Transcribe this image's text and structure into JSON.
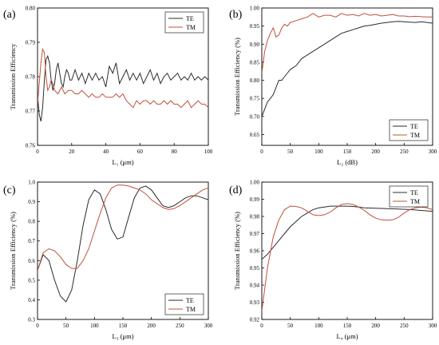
{
  "colors": {
    "TE": "#2b2b2b",
    "TM": "#c0503c"
  },
  "chart_data": [
    {
      "type": "line",
      "panel": "(a)",
      "xlabel": "L₁ (μm)",
      "ylabel": "Transmission Efficiency",
      "xlim": [
        0,
        100
      ],
      "ylim": [
        0.76,
        0.8
      ],
      "xticks": [
        "0",
        "20",
        "40",
        "60",
        "80",
        "100"
      ],
      "yticks": [
        "0.76",
        "0.77",
        "0.78",
        "0.79",
        "0.80"
      ],
      "legend": "top-right",
      "series": [
        {
          "name": "TE",
          "x": [
            0,
            1,
            2,
            3,
            4,
            5,
            6,
            7,
            8,
            9,
            10,
            11,
            12,
            13,
            14,
            15,
            16,
            17,
            18,
            19,
            20,
            22,
            24,
            26,
            28,
            30,
            32,
            34,
            36,
            38,
            40,
            42,
            44,
            46,
            48,
            50,
            52,
            54,
            56,
            58,
            60,
            62,
            64,
            66,
            68,
            70,
            72,
            74,
            76,
            78,
            80,
            82,
            84,
            86,
            88,
            90,
            92,
            94,
            96,
            98,
            100
          ],
          "y": [
            0.775,
            0.769,
            0.767,
            0.771,
            0.779,
            0.785,
            0.786,
            0.784,
            0.779,
            0.776,
            0.778,
            0.782,
            0.784,
            0.781,
            0.778,
            0.777,
            0.78,
            0.782,
            0.781,
            0.779,
            0.779,
            0.782,
            0.779,
            0.781,
            0.778,
            0.781,
            0.779,
            0.781,
            0.779,
            0.78,
            0.777,
            0.783,
            0.781,
            0.784,
            0.778,
            0.78,
            0.782,
            0.779,
            0.781,
            0.779,
            0.781,
            0.778,
            0.78,
            0.782,
            0.779,
            0.781,
            0.778,
            0.78,
            0.781,
            0.779,
            0.78,
            0.781,
            0.779,
            0.78,
            0.779,
            0.781,
            0.779,
            0.78,
            0.779,
            0.78,
            0.779
          ]
        },
        {
          "name": "TM",
          "x": [
            0,
            1,
            2,
            3,
            4,
            5,
            6,
            7,
            8,
            9,
            10,
            12,
            14,
            16,
            18,
            20,
            22,
            24,
            26,
            28,
            30,
            32,
            34,
            36,
            38,
            40,
            42,
            44,
            46,
            48,
            50,
            52,
            54,
            56,
            58,
            60,
            62,
            64,
            66,
            68,
            70,
            72,
            74,
            76,
            78,
            80,
            82,
            84,
            86,
            88,
            90,
            92,
            94,
            96,
            98,
            100
          ],
          "y": [
            0.772,
            0.778,
            0.784,
            0.788,
            0.787,
            0.78,
            0.776,
            0.777,
            0.779,
            0.778,
            0.776,
            0.775,
            0.777,
            0.775,
            0.776,
            0.776,
            0.775,
            0.775,
            0.776,
            0.775,
            0.774,
            0.775,
            0.774,
            0.774,
            0.775,
            0.774,
            0.774,
            0.774,
            0.775,
            0.774,
            0.775,
            0.773,
            0.772,
            0.771,
            0.773,
            0.772,
            0.773,
            0.773,
            0.772,
            0.773,
            0.772,
            0.772,
            0.773,
            0.772,
            0.773,
            0.772,
            0.772,
            0.771,
            0.772,
            0.773,
            0.771,
            0.772,
            0.773,
            0.772,
            0.772,
            0.771
          ]
        }
      ]
    },
    {
      "type": "line",
      "panel": "(b)",
      "xlabel": "L₂ (dB)",
      "ylabel": "Transmission Efficiency (%)",
      "xlim": [
        0,
        300
      ],
      "ylim": [
        0.62,
        1.0
      ],
      "xticks": [
        "0",
        "50",
        "100",
        "150",
        "200",
        "250",
        "300"
      ],
      "yticks": [
        "0.65",
        "0.70",
        "0.75",
        "0.80",
        "0.85",
        "0.90",
        "0.95",
        "1.00"
      ],
      "legend": "bottom-right",
      "series": [
        {
          "name": "TE",
          "x": [
            0,
            5,
            10,
            15,
            20,
            25,
            30,
            35,
            40,
            45,
            50,
            60,
            70,
            80,
            90,
            100,
            110,
            120,
            130,
            140,
            150,
            160,
            170,
            180,
            190,
            200,
            210,
            220,
            230,
            240,
            250,
            260,
            270,
            280,
            290,
            300
          ],
          "y": [
            0.7,
            0.72,
            0.74,
            0.75,
            0.76,
            0.78,
            0.8,
            0.8,
            0.81,
            0.82,
            0.83,
            0.84,
            0.86,
            0.87,
            0.88,
            0.89,
            0.9,
            0.91,
            0.92,
            0.93,
            0.935,
            0.94,
            0.945,
            0.95,
            0.952,
            0.955,
            0.958,
            0.96,
            0.962,
            0.963,
            0.962,
            0.961,
            0.96,
            0.962,
            0.96,
            0.958
          ]
        },
        {
          "name": "TM",
          "x": [
            0,
            5,
            10,
            15,
            20,
            25,
            30,
            35,
            40,
            45,
            50,
            60,
            70,
            80,
            90,
            100,
            110,
            120,
            130,
            140,
            150,
            160,
            170,
            180,
            190,
            200,
            210,
            220,
            230,
            240,
            250,
            260,
            270,
            280,
            290,
            300
          ],
          "y": [
            0.82,
            0.88,
            0.91,
            0.93,
            0.945,
            0.92,
            0.925,
            0.945,
            0.955,
            0.95,
            0.96,
            0.965,
            0.97,
            0.975,
            0.985,
            0.975,
            0.98,
            0.98,
            0.975,
            0.985,
            0.98,
            0.982,
            0.978,
            0.985,
            0.98,
            0.982,
            0.978,
            0.98,
            0.982,
            0.978,
            0.978,
            0.976,
            0.977,
            0.976,
            0.975,
            0.975
          ]
        }
      ]
    },
    {
      "type": "line",
      "panel": "(c)",
      "xlabel": "L₃ (μm)",
      "ylabel": "Transmission Efficiency (%)",
      "xlim": [
        0,
        300
      ],
      "ylim": [
        0.3,
        1.0
      ],
      "xticks": [
        "0",
        "50",
        "100",
        "150",
        "200",
        "250",
        "300"
      ],
      "yticks": [
        "0.3",
        "0.4",
        "0.5",
        "0.6",
        "0.7",
        "0.8",
        "0.9",
        "1.0"
      ],
      "legend": "bottom-right",
      "series": [
        {
          "name": "TE",
          "x": [
            0,
            10,
            20,
            30,
            40,
            50,
            60,
            70,
            80,
            90,
            100,
            110,
            120,
            130,
            140,
            150,
            160,
            170,
            180,
            190,
            200,
            210,
            220,
            230,
            240,
            250,
            260,
            270,
            280,
            290,
            300
          ],
          "y": [
            0.55,
            0.63,
            0.6,
            0.5,
            0.42,
            0.39,
            0.45,
            0.6,
            0.78,
            0.91,
            0.96,
            0.94,
            0.86,
            0.76,
            0.71,
            0.72,
            0.82,
            0.92,
            0.97,
            0.98,
            0.96,
            0.92,
            0.88,
            0.87,
            0.88,
            0.9,
            0.92,
            0.93,
            0.93,
            0.92,
            0.91
          ]
        },
        {
          "name": "TM",
          "x": [
            0,
            10,
            20,
            30,
            40,
            50,
            60,
            70,
            80,
            90,
            100,
            110,
            120,
            130,
            140,
            150,
            160,
            170,
            180,
            190,
            200,
            210,
            220,
            230,
            240,
            250,
            260,
            270,
            280,
            290,
            300
          ],
          "y": [
            0.55,
            0.64,
            0.66,
            0.65,
            0.62,
            0.58,
            0.56,
            0.56,
            0.6,
            0.66,
            0.75,
            0.84,
            0.92,
            0.97,
            0.985,
            0.985,
            0.98,
            0.97,
            0.96,
            0.94,
            0.91,
            0.89,
            0.87,
            0.86,
            0.865,
            0.88,
            0.9,
            0.92,
            0.94,
            0.96,
            0.97
          ]
        }
      ]
    },
    {
      "type": "line",
      "panel": "(d)",
      "xlabel": "L₄ (μm)",
      "ylabel": "Transmission Efficiency (%)",
      "xlim": [
        0,
        300
      ],
      "ylim": [
        0.92,
        1.0
      ],
      "xticks": [
        "0",
        "50",
        "100",
        "150",
        "200",
        "250",
        "300"
      ],
      "yticks": [
        "0.92",
        "0.93",
        "0.94",
        "0.95",
        "0.96",
        "0.97",
        "0.98",
        "0.99",
        "1.00"
      ],
      "legend": "top-right",
      "series": [
        {
          "name": "TE",
          "x": [
            0,
            10,
            20,
            30,
            40,
            50,
            60,
            70,
            80,
            90,
            100,
            110,
            120,
            130,
            140,
            150,
            160,
            170,
            180,
            200,
            220,
            240,
            260,
            280,
            300
          ],
          "y": [
            0.955,
            0.958,
            0.962,
            0.966,
            0.97,
            0.974,
            0.977,
            0.98,
            0.982,
            0.984,
            0.985,
            0.9855,
            0.986,
            0.986,
            0.986,
            0.986,
            0.9858,
            0.9855,
            0.985,
            0.9848,
            0.9845,
            0.9843,
            0.984,
            0.9835,
            0.983
          ]
        },
        {
          "name": "TM",
          "x": [
            0,
            10,
            20,
            30,
            40,
            50,
            60,
            70,
            80,
            90,
            100,
            110,
            120,
            130,
            140,
            150,
            160,
            170,
            180,
            190,
            200,
            210,
            220,
            230,
            240,
            250,
            260,
            270,
            280,
            290,
            300
          ],
          "y": [
            0.925,
            0.95,
            0.968,
            0.978,
            0.984,
            0.986,
            0.9858,
            0.985,
            0.983,
            0.981,
            0.9805,
            0.981,
            0.9825,
            0.985,
            0.987,
            0.9875,
            0.987,
            0.9855,
            0.9835,
            0.981,
            0.979,
            0.978,
            0.9778,
            0.978,
            0.9795,
            0.982,
            0.984,
            0.985,
            0.9855,
            0.985,
            0.984
          ]
        }
      ]
    }
  ]
}
